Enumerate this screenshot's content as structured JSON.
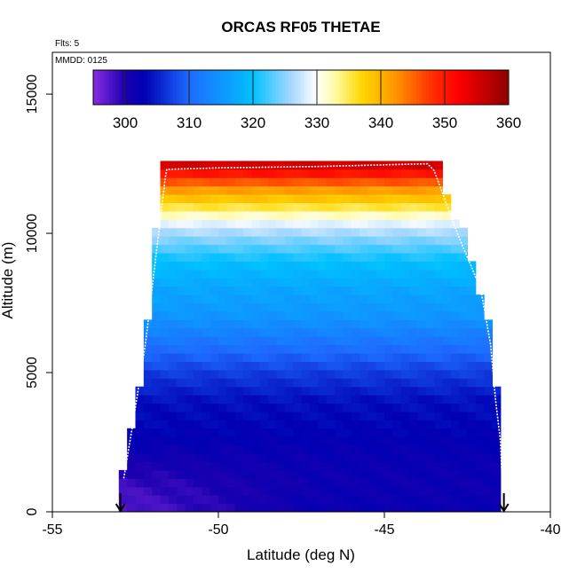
{
  "chart_data": {
    "type": "heatmap",
    "title": "ORCAS RF05 THETAE",
    "annotations": {
      "flights": "Flts: 5",
      "date": "MMDD: 0125"
    },
    "xlabel": "Latitude (deg N)",
    "ylabel": "Altitude (m)",
    "xlim": [
      -55,
      -40
    ],
    "ylim": [
      0,
      16500
    ],
    "x_ticks": [
      -55,
      -50,
      -45,
      -40
    ],
    "x_tick_labels": [
      "-55",
      "-50",
      "-45",
      "-40"
    ],
    "y_ticks": [
      0,
      5000,
      10000,
      15000
    ],
    "y_tick_labels": [
      "0",
      "5000",
      "10000",
      "15000"
    ],
    "colorbar": {
      "range": [
        295,
        360
      ],
      "ticks": [
        300,
        310,
        320,
        330,
        340,
        350,
        360
      ],
      "tick_labels": [
        "300",
        "310",
        "320",
        "330",
        "340",
        "350",
        "360"
      ],
      "stops": [
        {
          "v": 295,
          "c": "#8a2be2"
        },
        {
          "v": 300,
          "c": "#1a00b0"
        },
        {
          "v": 303,
          "c": "#0000b4"
        },
        {
          "v": 310,
          "c": "#1e6aff"
        },
        {
          "v": 320,
          "c": "#00c0ff"
        },
        {
          "v": 326,
          "c": "#a8d8ff"
        },
        {
          "v": 330,
          "c": "#ffffff"
        },
        {
          "v": 333,
          "c": "#fffaa0"
        },
        {
          "v": 337,
          "c": "#ffd700"
        },
        {
          "v": 342,
          "c": "#ff9a00"
        },
        {
          "v": 348,
          "c": "#ff3000"
        },
        {
          "v": 352,
          "c": "#ff0000"
        },
        {
          "v": 356,
          "c": "#c80000"
        },
        {
          "v": 360,
          "c": "#8b0000"
        }
      ]
    },
    "field": {
      "altitude_bins": {
        "start": 0,
        "step": 300,
        "count": 42
      },
      "latitude_bins": {
        "start": -53,
        "step": 0.25,
        "count": 46
      },
      "extent_profile": [
        {
          "alt": 0,
          "lat_min": -53.0,
          "lat_max": -41.3
        },
        {
          "alt": 1000,
          "lat_min": -52.95,
          "lat_max": -41.3
        },
        {
          "alt": 2000,
          "lat_min": -52.8,
          "lat_max": -41.5
        },
        {
          "alt": 3000,
          "lat_min": -52.6,
          "lat_max": -41.5
        },
        {
          "alt": 4000,
          "lat_min": -52.5,
          "lat_max": -41.5
        },
        {
          "alt": 5000,
          "lat_min": -52.3,
          "lat_max": -41.7
        },
        {
          "alt": 6000,
          "lat_min": -52.2,
          "lat_max": -41.8
        },
        {
          "alt": 7000,
          "lat_min": -52.1,
          "lat_max": -41.9
        },
        {
          "alt": 8000,
          "lat_min": -52.05,
          "lat_max": -42.2
        },
        {
          "alt": 9000,
          "lat_min": -51.9,
          "lat_max": -42.4
        },
        {
          "alt": 10000,
          "lat_min": -51.9,
          "lat_max": -42.6
        },
        {
          "alt": 11000,
          "lat_min": -51.7,
          "lat_max": -43.1
        },
        {
          "alt": 12000,
          "lat_min": -51.65,
          "lat_max": -43.2
        },
        {
          "alt": 12500,
          "lat_min": -51.65,
          "lat_max": -43.3
        }
      ],
      "theta_e_profile": [
        {
          "alt": 0,
          "value": 302
        },
        {
          "alt": 1000,
          "value": 301.5
        },
        {
          "alt": 2000,
          "value": 302
        },
        {
          "alt": 3000,
          "value": 303
        },
        {
          "alt": 4000,
          "value": 304
        },
        {
          "alt": 5000,
          "value": 307
        },
        {
          "alt": 6000,
          "value": 311
        },
        {
          "alt": 7000,
          "value": 315
        },
        {
          "alt": 8000,
          "value": 317
        },
        {
          "alt": 9000,
          "value": 320
        },
        {
          "alt": 10000,
          "value": 326
        },
        {
          "alt": 10500,
          "value": 330
        },
        {
          "alt": 11000,
          "value": 336
        },
        {
          "alt": 11500,
          "value": 341
        },
        {
          "alt": 12000,
          "value": 348
        },
        {
          "alt": 12500,
          "value": 356
        }
      ],
      "south_lowlevel_anomaly": -5
    },
    "flight_track": [
      [
        -52.85,
        1200
      ],
      [
        -52.6,
        3000
      ],
      [
        -52.4,
        4500
      ],
      [
        -52.2,
        6000
      ],
      [
        -52.0,
        8000
      ],
      [
        -51.8,
        10000
      ],
      [
        -51.6,
        12000
      ],
      [
        -51.55,
        12300
      ],
      [
        -50,
        12350
      ],
      [
        -47,
        12400
      ],
      [
        -43.7,
        12500
      ],
      [
        -43.5,
        12250
      ],
      [
        -42.8,
        10000
      ],
      [
        -42.1,
        8000
      ],
      [
        -41.8,
        6000
      ],
      [
        -41.65,
        4000
      ],
      [
        -41.5,
        2500
      ],
      [
        -41.45,
        1000
      ],
      [
        -41.4,
        600
      ]
    ],
    "track_color": "#ffffff",
    "markers": [
      {
        "x": -52.95,
        "label": "down-arrow"
      },
      {
        "x": -41.4,
        "label": "down-arrow"
      }
    ]
  }
}
